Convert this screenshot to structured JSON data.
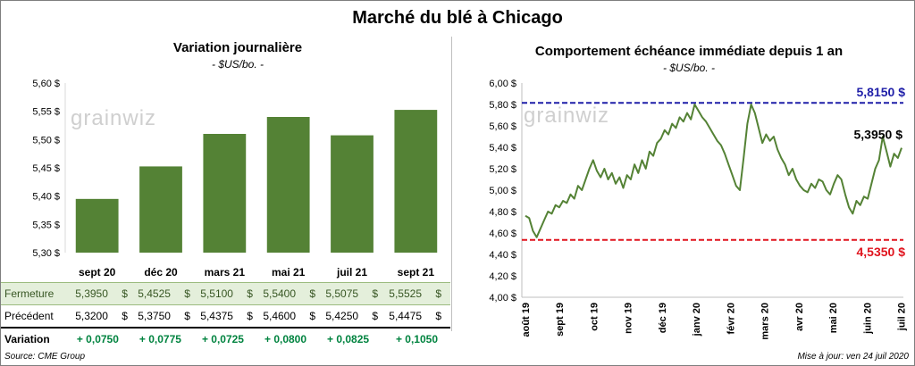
{
  "header": {
    "title": "Marché du blé à Chicago"
  },
  "left": {
    "title": "Variation  journalière",
    "subtitle": "- $US/bo. -",
    "watermark": "grainwiz"
  },
  "right": {
    "title": "Comportement  échéance immédiate depuis 1 an",
    "subtitle": "- $US/bo. -",
    "watermark": "grainwiz",
    "high_label": "5,8150 $",
    "low_label": "4,5350 $",
    "last_label": "5,3950 $"
  },
  "table": {
    "rows": [
      {
        "label": "Fermeture",
        "values": [
          "5,3950",
          "5,4525",
          "5,5100",
          "5,5400",
          "5,5075",
          "5,5525"
        ],
        "currency": "$"
      },
      {
        "label": "Précédent",
        "values": [
          "5,3200",
          "5,3750",
          "5,4375",
          "5,4600",
          "5,4250",
          "5,4475"
        ],
        "currency": "$"
      },
      {
        "label": "Variation",
        "values": [
          "+ 0,0750",
          "+ 0,0775",
          "+ 0,0725",
          "+ 0,0800",
          "+ 0,0825",
          "+ 0,1050"
        ],
        "currency": ""
      }
    ]
  },
  "footer": {
    "source": "Source: CME Group",
    "updated": "Mise à jour: ven 24 juil 2020"
  },
  "colors": {
    "bar": "#548235",
    "line": "#548235",
    "high": "#1f1fa8",
    "low": "#e0141e",
    "variation": "#00833f"
  },
  "chart_data": [
    {
      "type": "bar",
      "categories": [
        "sept 20",
        "déc 20",
        "mars 21",
        "mai 21",
        "juil 21",
        "sept 21"
      ],
      "values": [
        5.395,
        5.4525,
        5.51,
        5.54,
        5.5075,
        5.5525
      ],
      "ylim": [
        5.3,
        5.6
      ],
      "yticks": [
        5.3,
        5.35,
        5.4,
        5.45,
        5.5,
        5.55,
        5.6
      ],
      "ytick_labels": [
        "5,30 $",
        "5,35 $",
        "5,40 $",
        "5,45 $",
        "5,50 $",
        "5,55 $",
        "5,60 $"
      ],
      "grid": false
    },
    {
      "type": "line",
      "x_labels": [
        "août 19",
        "sept 19",
        "oct 19",
        "nov 19",
        "déc 19",
        "janv 20",
        "févr 20",
        "mars 20",
        "avr 20",
        "mai 20",
        "juin 20",
        "juil 20"
      ],
      "ylim": [
        4.0,
        6.0
      ],
      "yticks": [
        4.0,
        4.2,
        4.4,
        4.6,
        4.8,
        5.0,
        5.2,
        5.4,
        5.6,
        5.8,
        6.0
      ],
      "ytick_labels": [
        "4,00 $",
        "4,20 $",
        "4,40 $",
        "4,60 $",
        "4,80 $",
        "5,00 $",
        "5,20 $",
        "5,40 $",
        "5,60 $",
        "5,80 $",
        "6,00 $"
      ],
      "series": [
        {
          "values": [
            4.76,
            4.74,
            4.62,
            4.56,
            4.64,
            4.72,
            4.8,
            4.78,
            4.86,
            4.84,
            4.9,
            4.88,
            4.96,
            4.92,
            5.04,
            5.0,
            5.1,
            5.2,
            5.28,
            5.18,
            5.12,
            5.2,
            5.1,
            5.16,
            5.06,
            5.12,
            5.02,
            5.14,
            5.1,
            5.24,
            5.16,
            5.28,
            5.2,
            5.36,
            5.32,
            5.44,
            5.48,
            5.56,
            5.52,
            5.62,
            5.58,
            5.68,
            5.64,
            5.72,
            5.66,
            5.8,
            5.74,
            5.68,
            5.64,
            5.58,
            5.52,
            5.46,
            5.42,
            5.34,
            5.24,
            5.14,
            5.04,
            5.0,
            5.3,
            5.62,
            5.8,
            5.72,
            5.58,
            5.44,
            5.52,
            5.46,
            5.5,
            5.38,
            5.3,
            5.24,
            5.14,
            5.2,
            5.1,
            5.04,
            5.0,
            4.98,
            5.06,
            5.02,
            5.1,
            5.08,
            5.0,
            4.96,
            5.06,
            5.14,
            5.1,
            4.96,
            4.84,
            4.78,
            4.9,
            4.86,
            4.94,
            4.92,
            5.06,
            5.2,
            5.28,
            5.5,
            5.36,
            5.22,
            5.34,
            5.3,
            5.395
          ]
        }
      ],
      "hlines": [
        {
          "value": 5.815,
          "label": "5,8150 $"
        },
        {
          "value": 4.535,
          "label": "4,5350 $"
        }
      ],
      "grid": false
    }
  ]
}
